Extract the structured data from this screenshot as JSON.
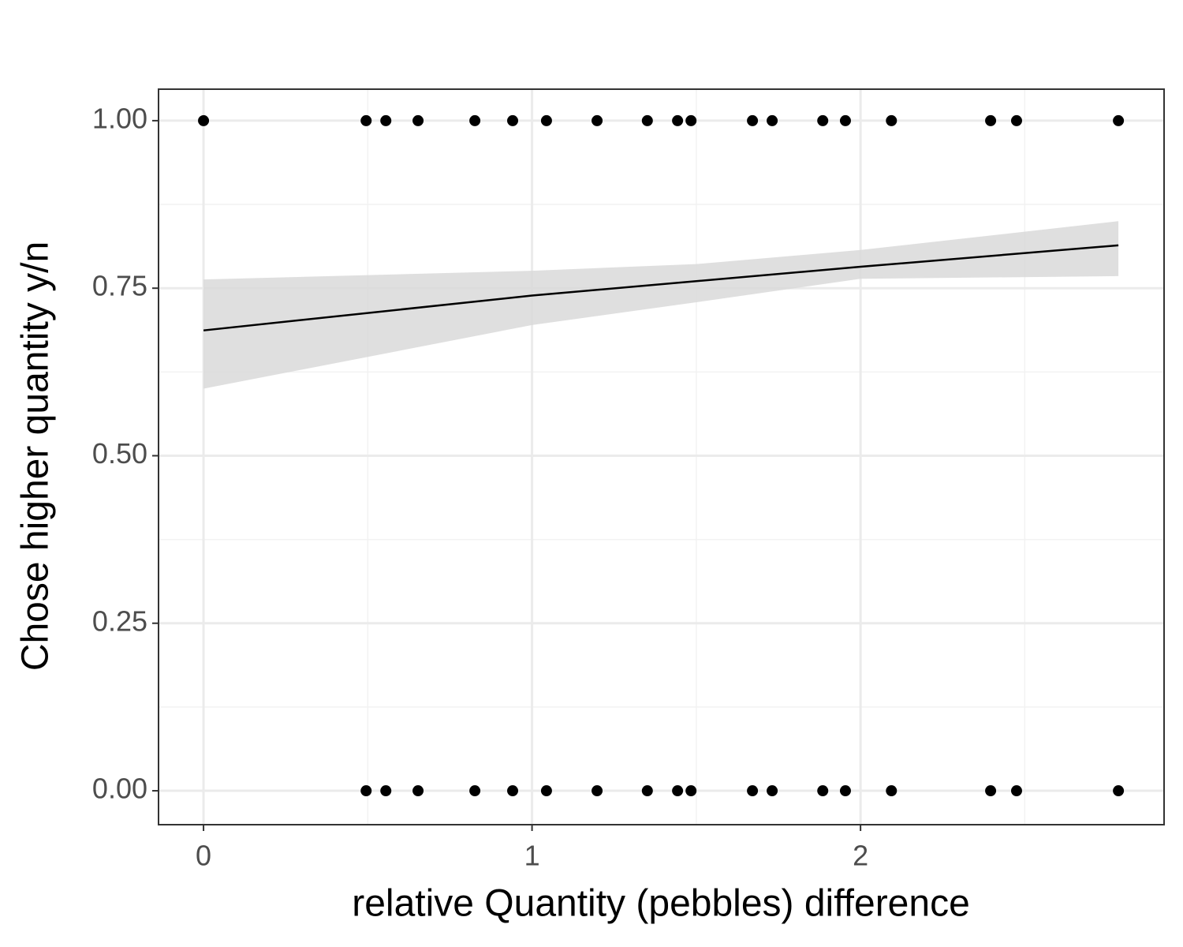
{
  "chart_data": {
    "type": "scatter",
    "x_label": "relative Quantity (pebbles) difference",
    "y_label": "Chose higher quantity y/n",
    "xlim": [
      -0.137,
      2.924
    ],
    "ylim": [
      -0.0506,
      1.047
    ],
    "xticks": [
      0,
      1,
      2
    ],
    "yticks": [
      {
        "value": 0,
        "label": "0.00"
      },
      {
        "value": 0.25,
        "label": "0.25"
      },
      {
        "value": 0.5,
        "label": "0.50"
      },
      {
        "value": 0.75,
        "label": "0.75"
      },
      {
        "value": 1,
        "label": "1.00"
      }
    ],
    "minor_xticks": [
      0.5,
      1.5,
      2.5
    ],
    "minor_yticks": [
      0.125,
      0.375,
      0.625,
      0.875
    ],
    "grid": true,
    "points": {
      "color": "#000000",
      "x": [
        0,
        0.495,
        0.555,
        0.653,
        0.826,
        0.941,
        1.044,
        1.198,
        1.351,
        1.443,
        1.484,
        1.671,
        1.731,
        1.885,
        1.954,
        2.094,
        2.396,
        2.475,
        2.785,
        0.495,
        0.555,
        0.653,
        0.826,
        0.941,
        1.044,
        1.198,
        1.351,
        1.443,
        1.484,
        1.671,
        1.731,
        1.885,
        1.954,
        2.094,
        2.396,
        2.475,
        2.785
      ],
      "y": [
        1,
        1,
        1,
        1,
        1,
        1,
        1,
        1,
        1,
        1,
        1,
        1,
        1,
        1,
        1,
        1,
        1,
        1,
        1,
        0,
        0,
        0,
        0,
        0,
        0,
        0,
        0,
        0,
        0,
        0,
        0,
        0,
        0,
        0,
        0,
        0,
        0
      ]
    },
    "fit": {
      "color": "#000000",
      "x": [
        0,
        1,
        2,
        2.785
      ],
      "y": [
        0.687,
        0.739,
        0.782,
        0.814
      ]
    },
    "band": {
      "color": "#d9d9d9",
      "x": [
        0,
        1,
        1.5,
        2,
        2.785
      ],
      "upper": [
        0.763,
        0.776,
        0.786,
        0.807,
        0.85
      ],
      "lower": [
        0.6,
        0.695,
        0.729,
        0.764,
        0.768
      ]
    }
  }
}
